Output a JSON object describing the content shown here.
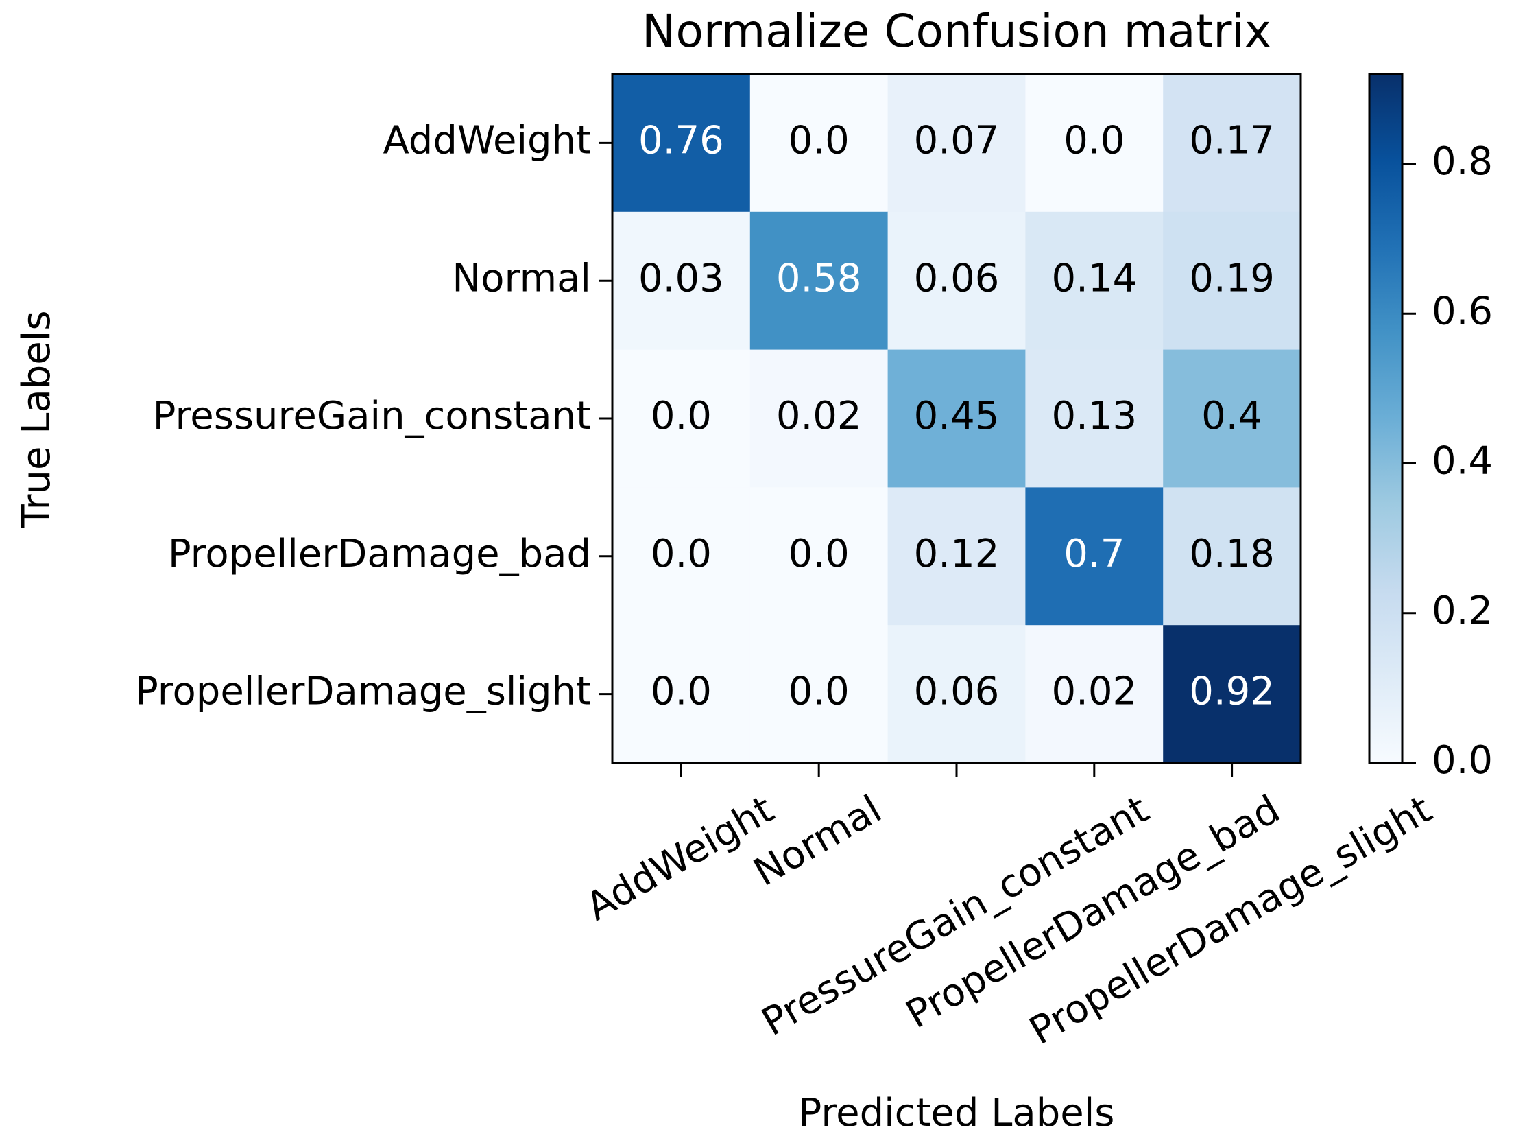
{
  "chart_data": {
    "type": "heatmap",
    "title": "Normalize Confusion matrix",
    "xlabel": "Predicted Labels",
    "ylabel": "True Labels",
    "x_categories": [
      "AddWeight",
      "Normal",
      "PressureGain_constant",
      "PropellerDamage_bad",
      "PropellerDamage_slight"
    ],
    "y_categories": [
      "AddWeight",
      "Normal",
      "PressureGain_constant",
      "PropellerDamage_bad",
      "PropellerDamage_slight"
    ],
    "values": [
      [
        0.76,
        0,
        0.07,
        0,
        0.17
      ],
      [
        0.03,
        0.58,
        0.06,
        0.14,
        0.19
      ],
      [
        0,
        0.02,
        0.45,
        0.13,
        0.4
      ],
      [
        0,
        0,
        0.12,
        0.7,
        0.18
      ],
      [
        0,
        0,
        0.06,
        0.02,
        0.92
      ]
    ],
    "value_labels": [
      [
        "0.76",
        "0.0",
        "0.07",
        "0.0",
        "0.17"
      ],
      [
        "0.03",
        "0.58",
        "0.06",
        "0.14",
        "0.19"
      ],
      [
        "0.0",
        "0.02",
        "0.45",
        "0.13",
        "0.4"
      ],
      [
        "0.0",
        "0.0",
        "0.12",
        "0.7",
        "0.18"
      ],
      [
        "0.0",
        "0.0",
        "0.06",
        "0.02",
        "0.92"
      ]
    ],
    "colormap": "Blues",
    "zlim": [
      0,
      0.92
    ],
    "zticks": [
      {
        "value": 0,
        "label": "0.0"
      },
      0.2,
      0.4,
      0.6,
      0.8
    ]
  }
}
